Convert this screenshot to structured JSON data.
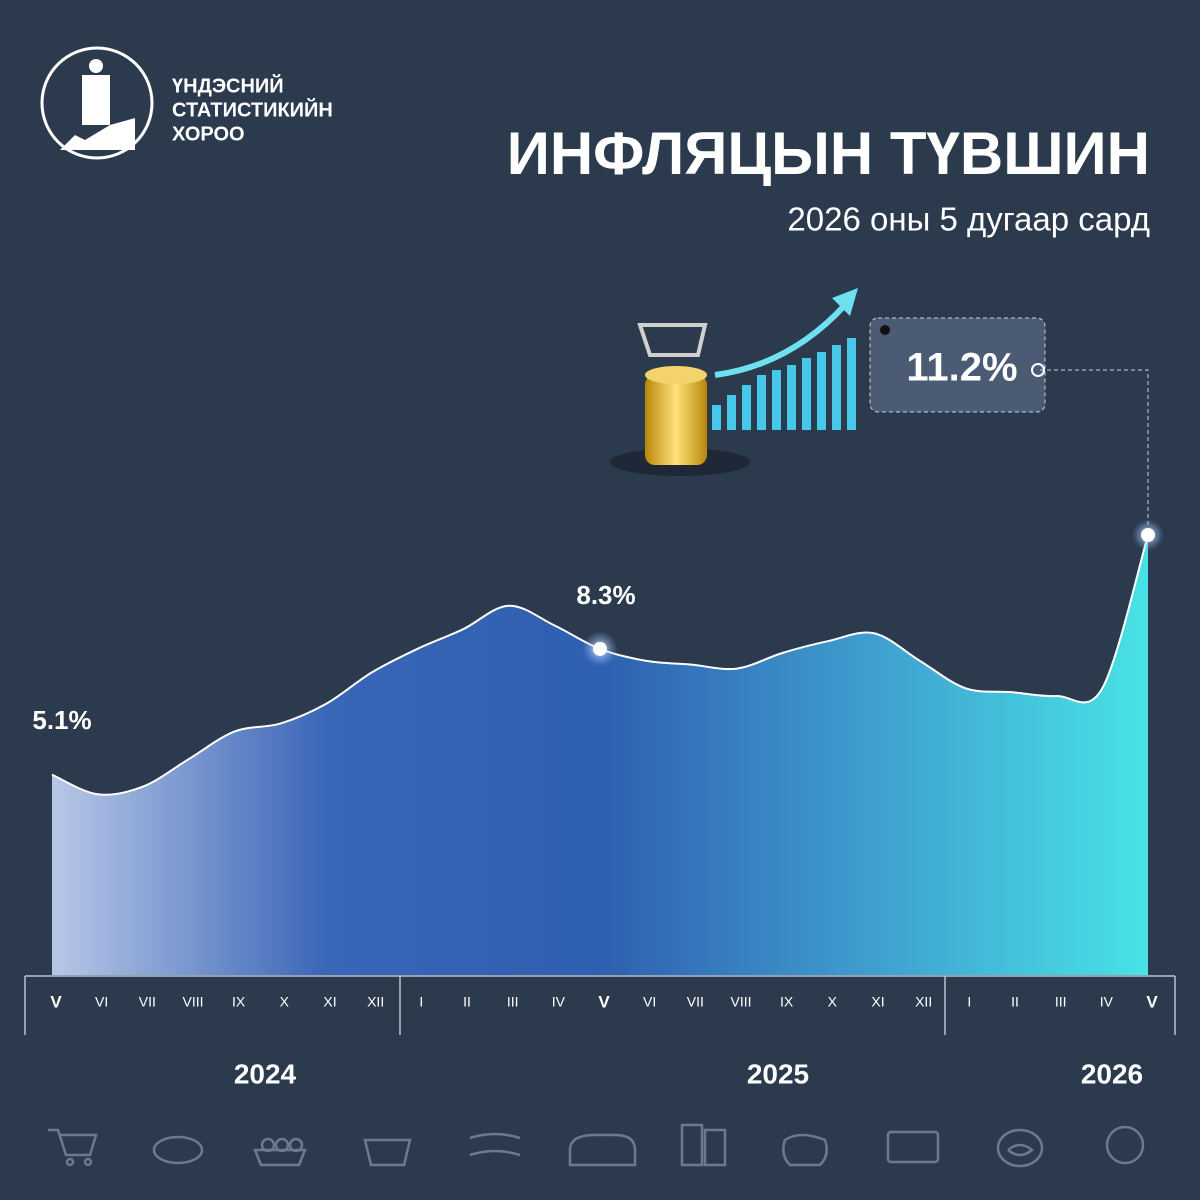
{
  "organization": [
    "ҮНДЭСНИЙ",
    "СТАТИСТИКИЙН",
    "ХОРОО"
  ],
  "chart_data": {
    "type": "area",
    "title": "ИНФЛЯЦЫН ТҮВШИН",
    "subtitle": "2026 оны 5 дугаар сард",
    "categories": [
      "V",
      "VI",
      "VII",
      "VIII",
      "IX",
      "X",
      "XI",
      "XII",
      "I",
      "II",
      "III",
      "IV",
      "V",
      "VI",
      "VII",
      "VIII",
      "IX",
      "X",
      "XI",
      "XII",
      "I",
      "II",
      "III",
      "IV",
      "V"
    ],
    "years": [
      "2024",
      "2025",
      "2026"
    ],
    "values": [
      5.1,
      4.6,
      4.8,
      5.5,
      6.2,
      6.4,
      6.9,
      7.7,
      8.3,
      8.8,
      9.4,
      8.9,
      8.3,
      8.0,
      7.9,
      7.8,
      8.2,
      8.5,
      8.7,
      8.0,
      7.3,
      7.2,
      7.1,
      7.3,
      11.2
    ],
    "value_labels": [
      "5.1%",
      null,
      null,
      null,
      null,
      null,
      null,
      null,
      null,
      null,
      null,
      null,
      "8.3%",
      null,
      null,
      null,
      null,
      null,
      null,
      null,
      null,
      null,
      null,
      null,
      "11.2%"
    ],
    "colors": [
      "#b8c7e6",
      "#3a66b8",
      "#2f5fb0",
      "#3f9fd0",
      "#48e3e6"
    ],
    "line_color": "#ffffff"
  }
}
